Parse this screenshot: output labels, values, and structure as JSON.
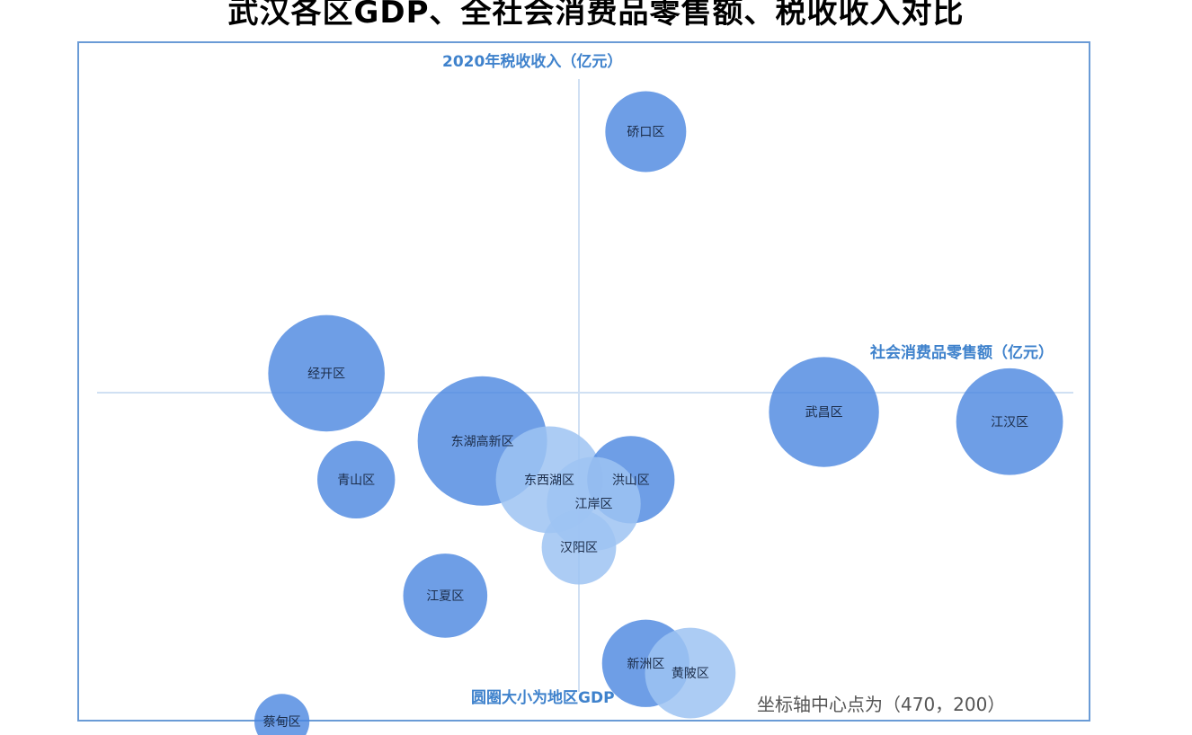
{
  "title": "武汉各区GDP、全社会消费品零售额、税收收入对比",
  "axes": {
    "y_label": "2020年税收收入（亿元）",
    "x_label": "社会消费品零售额（亿元）"
  },
  "notes": {
    "size_note": "圆圈大小为地区GDP",
    "center_note": "坐标轴中心点为（470，200）"
  },
  "colors": {
    "dark": "#4a86e0",
    "light": "#9ec3f2",
    "axis": "#d0e0f3",
    "frame": "#6a9bd6",
    "label_blue": "#3f82cc"
  },
  "chart_data": {
    "type": "bubble",
    "title": "武汉各区GDP、全社会消费品零售额、税收收入对比",
    "xlabel": "社会消费品零售额（亿元）",
    "ylabel": "2020年税收收入（亿元）",
    "size_label": "圆圈大小为地区GDP",
    "axis_center": [
      470,
      200
    ],
    "points": [
      {
        "name": "硚口区",
        "x": 560,
        "y": 470,
        "size": 50,
        "tone": "dark"
      },
      {
        "name": "经开区",
        "x": 130,
        "y": 220,
        "size": 72,
        "tone": "dark"
      },
      {
        "name": "武昌区",
        "x": 800,
        "y": 180,
        "size": 68,
        "tone": "dark"
      },
      {
        "name": "江汉区",
        "x": 1050,
        "y": 170,
        "size": 66,
        "tone": "dark"
      },
      {
        "name": "东湖高新区",
        "x": 340,
        "y": 150,
        "size": 80,
        "tone": "dark"
      },
      {
        "name": "东西湖区",
        "x": 430,
        "y": 110,
        "size": 66,
        "tone": "light"
      },
      {
        "name": "洪山区",
        "x": 540,
        "y": 110,
        "size": 54,
        "tone": "dark"
      },
      {
        "name": "江岸区",
        "x": 490,
        "y": 85,
        "size": 58,
        "tone": "light"
      },
      {
        "name": "汉阳区",
        "x": 470,
        "y": 40,
        "size": 46,
        "tone": "light"
      },
      {
        "name": "青山区",
        "x": 170,
        "y": 110,
        "size": 48,
        "tone": "dark"
      },
      {
        "name": "江夏区",
        "x": 290,
        "y": -10,
        "size": 52,
        "tone": "dark"
      },
      {
        "name": "新洲区",
        "x": 560,
        "y": -80,
        "size": 54,
        "tone": "dark"
      },
      {
        "name": "黄陂区",
        "x": 620,
        "y": -90,
        "size": 56,
        "tone": "light"
      },
      {
        "name": "蔡甸区",
        "x": 70,
        "y": -140,
        "size": 34,
        "tone": "dark"
      }
    ]
  }
}
